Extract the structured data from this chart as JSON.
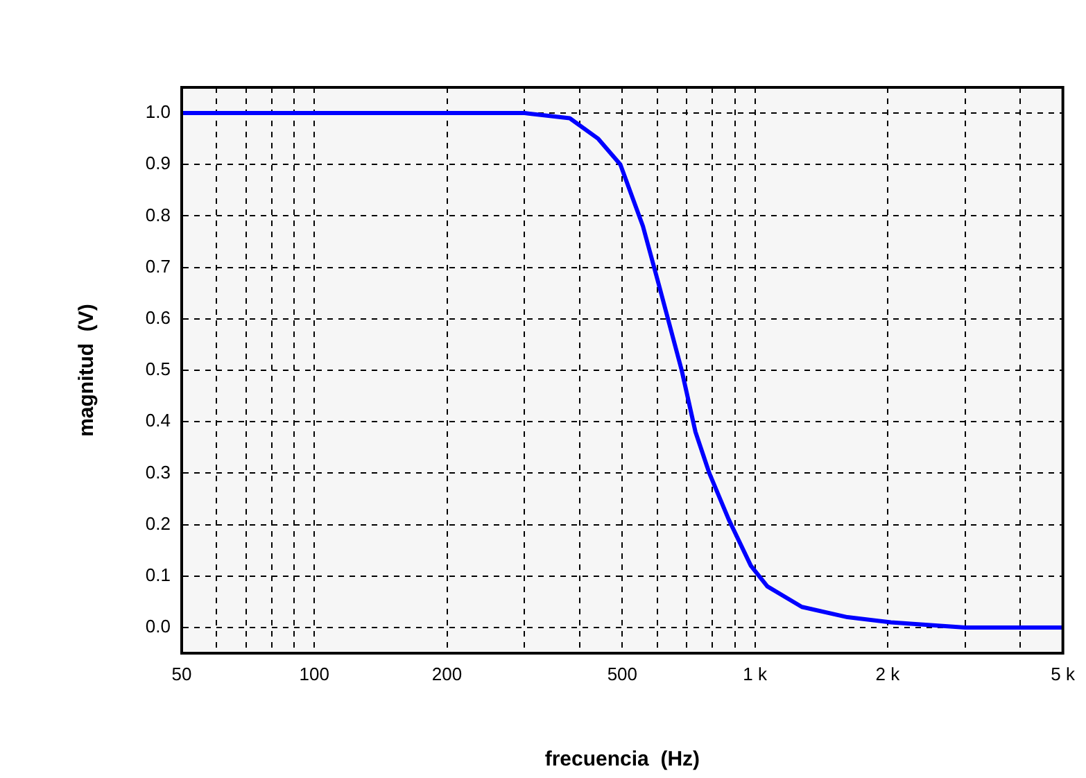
{
  "chart_data": {
    "type": "line",
    "xlabel": "frecuencia  (Hz)",
    "ylabel": "magnitud  (V)",
    "log": "x",
    "xlim": [
      50,
      5000
    ],
    "ylim": [
      -0.05,
      1.05
    ],
    "xticks": [
      50,
      {
        "value": 60,
        "label": null
      },
      {
        "value": 70,
        "label": null
      },
      {
        "value": 80,
        "label": null
      },
      {
        "value": 90,
        "label": null
      },
      100,
      200,
      {
        "value": 300,
        "label": null
      },
      {
        "value": 400,
        "label": null
      },
      500,
      {
        "value": 600,
        "label": null
      },
      {
        "value": 700,
        "label": null
      },
      {
        "value": 800,
        "label": null
      },
      {
        "value": 900,
        "label": null
      },
      {
        "value": 1000,
        "label": "1 k"
      },
      {
        "value": 2000,
        "label": "2 k"
      },
      {
        "value": 3000,
        "label": null
      },
      {
        "value": 4000,
        "label": null
      },
      {
        "value": 5000,
        "label": "5 k"
      }
    ],
    "yticks": [
      {
        "value": 0,
        "label": "0.0"
      },
      0.1,
      0.2,
      0.3,
      0.4,
      0.5,
      0.6,
      0.7,
      0.8,
      0.9,
      {
        "value": 1,
        "label": "1.0"
      }
    ],
    "grid": true,
    "marker": "none",
    "x": [
      50,
      100,
      200,
      300,
      380,
      441,
      495,
      557,
      608,
      682,
      733,
      788,
      872,
      979,
      1067,
      1278,
      1622,
      2035,
      3000,
      5000
    ],
    "series": [
      {
        "color": "#0000ff",
        "values": [
          1.0,
          1.0,
          1.0,
          1.0,
          0.99,
          0.95,
          0.9,
          0.78,
          0.66,
          0.5,
          0.38,
          0.3,
          0.21,
          0.12,
          0.08,
          0.04,
          0.02,
          0.01,
          0.0,
          0.0
        ]
      }
    ]
  }
}
